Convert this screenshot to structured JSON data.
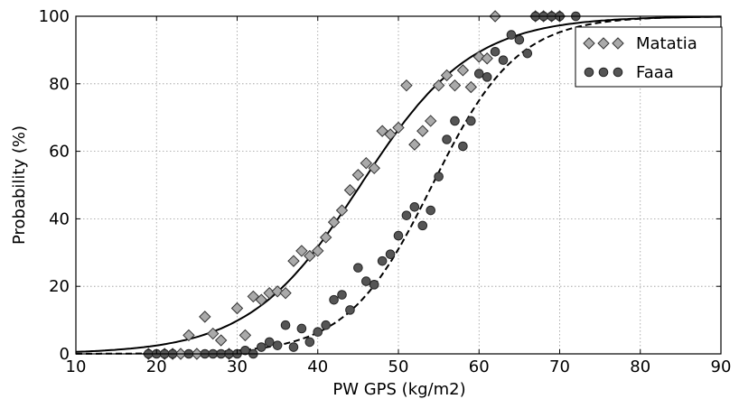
{
  "chart_data": {
    "type": "scatter",
    "title": "",
    "xlabel": "PW GPS (kg/m2)",
    "ylabel": "Probability (%)",
    "xlim": [
      10,
      90
    ],
    "ylim": [
      0,
      100
    ],
    "xticks": [
      "10",
      "20",
      "30",
      "40",
      "50",
      "60",
      "70",
      "80",
      "90"
    ],
    "yticks": [
      "0",
      "20",
      "40",
      "60",
      "80",
      "100"
    ],
    "grid": true,
    "legend_position": "top-right",
    "series": [
      {
        "name": "Matatia",
        "marker": "diamond",
        "color": "#aaaaaa",
        "x": [
          19,
          21,
          22,
          23,
          24,
          25,
          26,
          27,
          28,
          29,
          30,
          31,
          32,
          33,
          34,
          35,
          36,
          37,
          38,
          39,
          40,
          41,
          42,
          43,
          44,
          45,
          46,
          47,
          48,
          49,
          50,
          51,
          52,
          53,
          54,
          55,
          56,
          57,
          58,
          59,
          60,
          61,
          62,
          67,
          68,
          69,
          70
        ],
        "y": [
          0,
          0,
          0,
          0,
          5.5,
          0,
          11,
          6,
          4,
          0,
          13.5,
          5.5,
          17,
          16,
          18,
          18.5,
          18,
          27.5,
          30.5,
          29,
          30.5,
          34.5,
          39,
          42.5,
          48.5,
          53,
          56.5,
          55,
          66,
          65,
          67,
          79.5,
          62,
          66,
          69,
          79.5,
          82.5,
          79.5,
          84,
          79,
          88,
          87.5,
          100,
          100,
          100,
          100,
          100
        ]
      },
      {
        "name": "Faaa",
        "marker": "circle",
        "color": "#555555",
        "x": [
          19,
          20,
          21,
          22,
          24,
          26,
          27,
          28,
          29,
          30,
          31,
          32,
          33,
          34,
          35,
          36,
          37,
          38,
          39,
          40,
          41,
          42,
          43,
          44,
          45,
          46,
          47,
          48,
          49,
          50,
          51,
          52,
          53,
          54,
          55,
          56,
          57,
          58,
          59,
          60,
          61,
          62,
          63,
          64,
          65,
          66,
          67,
          68,
          69,
          70,
          72
        ],
        "y": [
          0,
          0,
          0,
          0,
          0,
          0,
          0,
          0,
          0,
          0,
          1,
          0,
          2,
          3.5,
          2.5,
          8.5,
          2,
          7.5,
          3.5,
          6.5,
          8.5,
          16,
          17.5,
          13,
          25.5,
          21.5,
          20.5,
          27.5,
          29.5,
          35,
          41,
          43.5,
          38,
          42.5,
          52.5,
          63.5,
          69,
          61.5,
          69,
          83,
          82,
          89.5,
          87,
          94.5,
          93,
          89,
          100,
          100,
          100,
          100,
          100
        ]
      }
    ],
    "curves": [
      {
        "series": "Matatia",
        "style": "solid",
        "x0": 45.3,
        "k": 0.145
      },
      {
        "series": "Faaa",
        "style": "dashed",
        "x0": 54.2,
        "k": 0.19
      }
    ]
  }
}
